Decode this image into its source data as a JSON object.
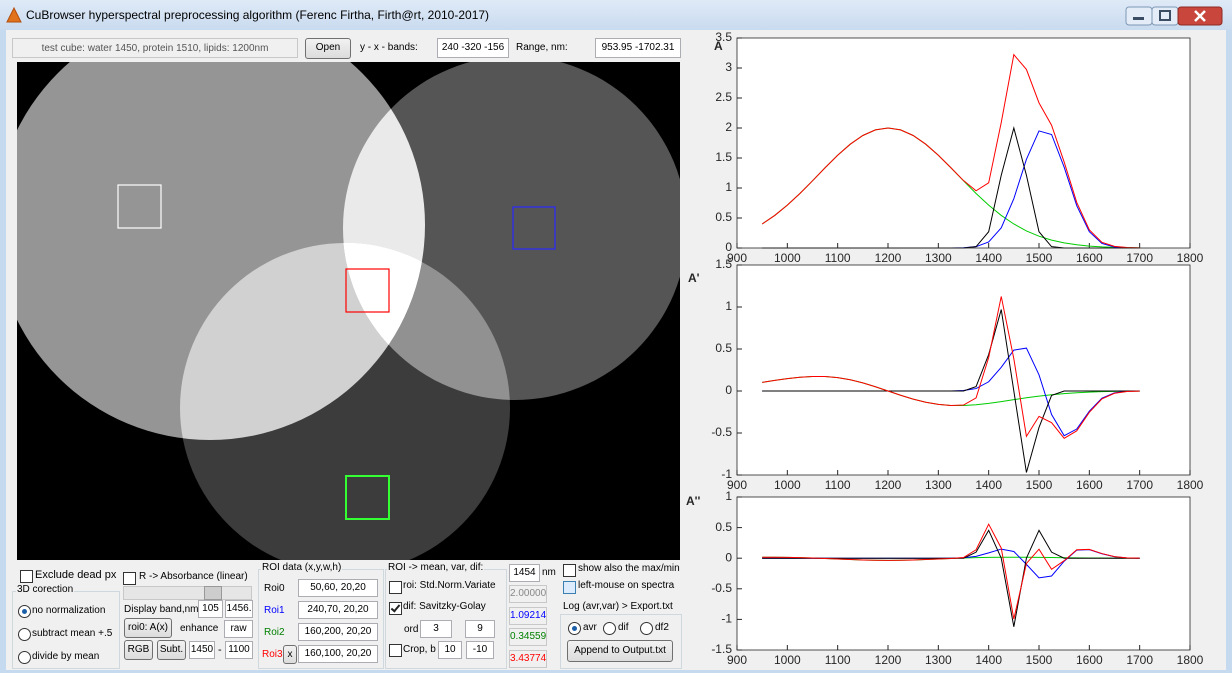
{
  "window": {
    "title": "CuBrowser hyperspectral preprocessing algorithm (Ferenc Firtha, Firth@rt, 2010-2017)"
  },
  "toolbar": {
    "cube": "test cube: water 1450, protein 1510, lipids: 1200nm",
    "open": "Open",
    "bands_label": "y - x - bands:",
    "bands": "240 -320 -156",
    "range_label": "Range, nm:",
    "range": "953.95 -1702.31"
  },
  "normalization": {
    "exclude_dead": "Exclude dead px",
    "group": "3D corection",
    "options": [
      "no normalization",
      "subtract mean +.5",
      "divide by mean"
    ]
  },
  "display": {
    "absorbance": "R -> Absorbance (linear)",
    "band_label": "Display band,nm:",
    "band_index": "105",
    "band_nm": "1456.",
    "roi_button": "roi0: A(x)",
    "enhance_label": "enhance",
    "enhance": "raw",
    "rgb": "RGB",
    "subt": "Subt.",
    "from": "1450",
    "dash": "-",
    "to": "1100"
  },
  "roi_data": {
    "group": "ROI data (x,y,w,h)",
    "rows": [
      {
        "label": "Roi0",
        "value": "50,60, 20,20"
      },
      {
        "label": "Roi1",
        "value": "240,70, 20,20"
      },
      {
        "label": "Roi2",
        "value": "160,200, 20,20"
      },
      {
        "label": "Roi3",
        "value": "160,100, 20,20"
      }
    ],
    "delete": "x"
  },
  "processing": {
    "group": "ROI -> mean, var, dif:",
    "snv": "roi: Std.Norm.Variate",
    "savgol": "dif: Savitzky-Golay",
    "ord_label": "ord",
    "ord": "3",
    "window": "9",
    "crop": "Crop, b",
    "crop_from": "10",
    "crop_to": "-10"
  },
  "readout": {
    "wavelength": "1454",
    "unit": "nm",
    "values": [
      "2.00000",
      "1.09214",
      "0.34559",
      "3.43774"
    ]
  },
  "export": {
    "show_maxmin": "show also the max/min",
    "left_mouse": "left-mouse on spectra",
    "log_label": "Log (avr,var) > Export.txt",
    "modes": [
      "avr",
      "dif",
      "df2"
    ],
    "append": "Append to Output.txt"
  },
  "chart_data": [
    {
      "type": "line",
      "y_label": "A",
      "x": [
        950,
        975,
        1000,
        1025,
        1050,
        1075,
        1100,
        1125,
        1150,
        1175,
        1200,
        1225,
        1250,
        1275,
        1300,
        1325,
        1350,
        1375,
        1400,
        1425,
        1450,
        1475,
        1500,
        1525,
        1550,
        1575,
        1600,
        1625,
        1650,
        1675,
        1700
      ],
      "xlim": [
        900,
        1800
      ],
      "xticks": [
        900,
        1000,
        1100,
        1200,
        1300,
        1400,
        1500,
        1600,
        1700,
        1800
      ],
      "ylim": [
        0,
        3.5
      ],
      "yticks": [
        0,
        0.5,
        1,
        1.5,
        2,
        2.5,
        3,
        3.5
      ],
      "series": [
        {
          "color": "#00cc00",
          "values": [
            0.4,
            0.543,
            0.714,
            0.909,
            1.12,
            1.338,
            1.546,
            1.73,
            1.875,
            1.968,
            2,
            1.968,
            1.875,
            1.73,
            1.546,
            1.338,
            1.12,
            0.909,
            0.714,
            0.543,
            0.4,
            0.285,
            0.197,
            0.132,
            0.085,
            0.054,
            0.032,
            0.019,
            0.011,
            0.006,
            0.003
          ]
        },
        {
          "color": "#0000ff",
          "values": [
            0,
            0,
            0,
            0,
            0,
            0,
            0,
            0,
            0,
            0,
            0,
            0,
            0,
            0,
            0,
            0,
            0.004,
            0.022,
            0.101,
            0.336,
            0.822,
            1.478,
            1.951,
            1.892,
            1.347,
            0.705,
            0.271,
            0.076,
            0.016,
            0.002,
            0
          ]
        },
        {
          "color": "#000000",
          "values": [
            0,
            0,
            0,
            0,
            0,
            0,
            0,
            0,
            0,
            0,
            0,
            0,
            0,
            0,
            0,
            0,
            0,
            0.022,
            0.271,
            1.213,
            2,
            1.213,
            0.271,
            0.022,
            0,
            0,
            0,
            0,
            0,
            0,
            0
          ]
        },
        {
          "color": "#ff0000",
          "values": [
            0.4,
            0.543,
            0.714,
            0.909,
            1.12,
            1.338,
            1.546,
            1.73,
            1.875,
            1.968,
            2,
            1.968,
            1.875,
            1.73,
            1.546,
            1.338,
            1.124,
            0.953,
            1.086,
            2.092,
            3.222,
            2.976,
            2.419,
            2.046,
            1.432,
            0.759,
            0.303,
            0.095,
            0.027,
            0.008,
            0.003
          ]
        }
      ]
    },
    {
      "type": "line",
      "y_label": "A'",
      "x": [
        950,
        975,
        1000,
        1025,
        1050,
        1075,
        1100,
        1125,
        1150,
        1175,
        1200,
        1225,
        1250,
        1275,
        1300,
        1325,
        1350,
        1375,
        1400,
        1425,
        1450,
        1475,
        1500,
        1525,
        1550,
        1575,
        1600,
        1625,
        1650,
        1675,
        1700
      ],
      "xlim": [
        900,
        1800
      ],
      "xticks": [
        900,
        1000,
        1100,
        1200,
        1300,
        1400,
        1500,
        1600,
        1700,
        1800
      ],
      "ylim": [
        -1,
        1.5
      ],
      "yticks": [
        -1,
        -0.5,
        0,
        0.5,
        1,
        1.5
      ],
      "series": [
        {
          "color": "#00cc00",
          "values": [
            0.103,
            0.126,
            0.147,
            0.164,
            0.173,
            0.172,
            0.159,
            0.134,
            0.097,
            0.051,
            0,
            -0.051,
            -0.097,
            -0.134,
            -0.159,
            -0.172,
            -0.173,
            -0.164,
            -0.147,
            -0.126,
            -0.103,
            -0.081,
            -0.061,
            -0.044,
            -0.031,
            -0.021,
            -0.013,
            -0.008,
            -0.005,
            -0.003,
            -0.002
          ]
        },
        {
          "color": "#0000ff",
          "values": [
            0,
            0,
            0,
            0,
            0,
            0,
            0,
            0,
            0,
            0,
            0,
            0,
            0,
            0,
            0,
            0,
            0.006,
            0.029,
            0.11,
            0.282,
            0.487,
            0.511,
            0.193,
            -0.28,
            -0.532,
            -0.453,
            -0.241,
            -0.086,
            -0.022,
            -0.003,
            0
          ]
        },
        {
          "color": "#000000",
          "values": [
            0,
            0,
            0,
            0,
            0,
            0,
            0,
            0,
            0,
            0,
            0,
            0,
            0,
            0,
            0,
            0,
            0,
            0.053,
            0.434,
            0.97,
            0,
            -0.97,
            -0.434,
            -0.053,
            0,
            0,
            0,
            0,
            0,
            0,
            0
          ]
        },
        {
          "color": "#ff0000",
          "values": [
            0.103,
            0.126,
            0.147,
            0.164,
            0.173,
            0.172,
            0.159,
            0.134,
            0.097,
            0.051,
            0,
            -0.051,
            -0.097,
            -0.134,
            -0.159,
            -0.172,
            -0.167,
            -0.082,
            0.397,
            1.126,
            0.384,
            -0.54,
            -0.302,
            -0.377,
            -0.563,
            -0.474,
            -0.254,
            -0.094,
            -0.027,
            -0.006,
            -0.002
          ]
        }
      ]
    },
    {
      "type": "line",
      "y_label": "A''",
      "x": [
        950,
        975,
        1000,
        1025,
        1050,
        1075,
        1100,
        1125,
        1150,
        1175,
        1200,
        1225,
        1250,
        1275,
        1300,
        1325,
        1350,
        1375,
        1400,
        1425,
        1450,
        1475,
        1500,
        1525,
        1550,
        1575,
        1600,
        1625,
        1650,
        1675,
        1700
      ],
      "xlim": [
        900,
        1800
      ],
      "xticks": [
        900,
        1000,
        1100,
        1200,
        1300,
        1400,
        1500,
        1600,
        1700,
        1800
      ],
      "ylim": [
        -1.5,
        1
      ],
      "yticks": [
        -1.5,
        -1,
        -0.5,
        0,
        0.5,
        1
      ],
      "series": [
        {
          "color": "#00cc00",
          "values": [
            0.016,
            0.016,
            0.014,
            0.009,
            0.003,
            -0.005,
            -0.014,
            -0.022,
            -0.029,
            -0.034,
            -0.036,
            -0.034,
            -0.029,
            -0.022,
            -0.014,
            -0.005,
            0.003,
            0.009,
            0.014,
            0.016,
            0.016,
            0.015,
            0.013,
            0.011,
            0.008,
            0.006,
            0.004,
            0.003,
            0.002,
            0.001,
            0.001
          ]
        },
        {
          "color": "#0000ff",
          "values": [
            0,
            0,
            0,
            0,
            0,
            0,
            0,
            0,
            0,
            0,
            0,
            0,
            0,
            0,
            0,
            0,
            0.008,
            0.03,
            0.087,
            0.149,
            0.11,
            -0.101,
            -0.321,
            -0.291,
            -0.049,
            0.132,
            0.14,
            0.073,
            0.024,
            0.004,
            0
          ]
        },
        {
          "color": "#000000",
          "values": [
            0,
            0,
            0,
            0,
            0,
            0,
            0,
            0,
            0,
            0,
            0,
            0,
            0,
            0,
            0,
            0,
            0,
            0.099,
            0.455,
            0,
            -1.12,
            0,
            0.455,
            0.099,
            0,
            0,
            0,
            0,
            0,
            0,
            0
          ]
        },
        {
          "color": "#ff0000",
          "values": [
            0.016,
            0.016,
            0.014,
            0.009,
            0.003,
            -0.005,
            -0.014,
            -0.022,
            -0.029,
            -0.034,
            -0.036,
            -0.034,
            -0.029,
            -0.022,
            -0.014,
            -0.005,
            0.011,
            0.138,
            0.556,
            0.165,
            -0.994,
            -0.086,
            0.147,
            -0.181,
            -0.041,
            0.138,
            0.144,
            0.076,
            0.026,
            0.005,
            0.001
          ]
        }
      ]
    }
  ]
}
